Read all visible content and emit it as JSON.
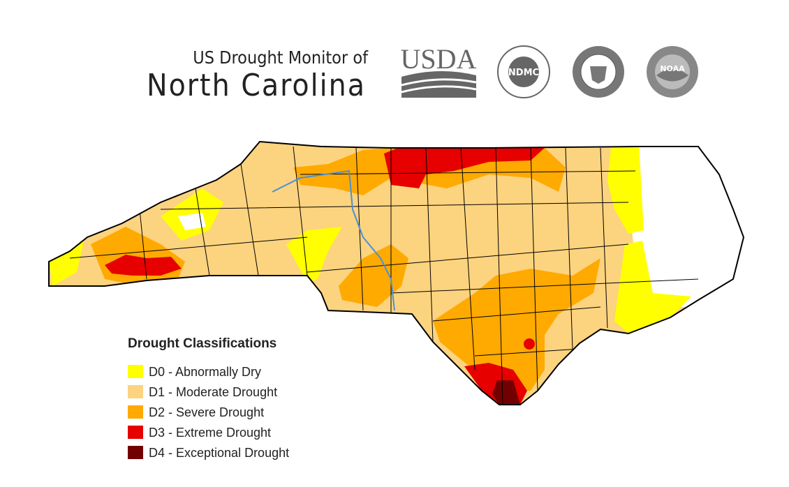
{
  "header": {
    "subtitle": "US Drought Monitor of",
    "title": "North Carolina"
  },
  "logos": [
    "USDA",
    "NDMC",
    "NOAA"
  ],
  "legend": {
    "title": "Drought Classifications",
    "items": [
      {
        "label": "D0 - Abnormally Dry",
        "color": "#ffff00"
      },
      {
        "label": "D1 - Moderate Drought",
        "color": "#fcd37f"
      },
      {
        "label": "D2 - Severe Drought",
        "color": "#ffaa00"
      },
      {
        "label": "D3 - Extreme Drought",
        "color": "#e60000"
      },
      {
        "label": "D4 - Exceptional Drought",
        "color": "#730000"
      }
    ]
  }
}
